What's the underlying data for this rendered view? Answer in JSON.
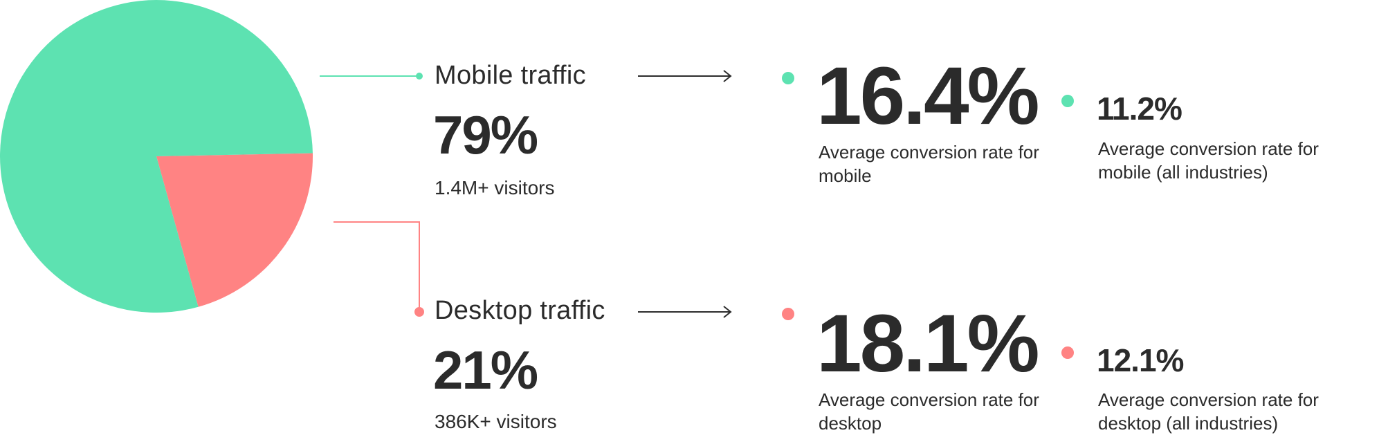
{
  "colors": {
    "mobile": "#5de2b1",
    "desktop": "#ff8383",
    "text": "#2b2b2b"
  },
  "chart_data": {
    "type": "pie",
    "slices": [
      {
        "name": "Mobile traffic",
        "value": 79,
        "color": "#5de2b1"
      },
      {
        "name": "Desktop traffic",
        "value": 21,
        "color": "#ff8383"
      }
    ]
  },
  "segments": [
    {
      "key": "mobile",
      "title": "Mobile traffic",
      "share": "79%",
      "visitors": "1.4M+ visitors",
      "rate": "16.4%",
      "rate_desc": "Average conversion rate for mobile",
      "industry_rate": "11.2%",
      "industry_desc": "Average conversion rate for mobile (all industries)"
    },
    {
      "key": "desktop",
      "title": "Desktop traffic",
      "share": "21%",
      "visitors": "386K+ visitors",
      "rate": "18.1%",
      "rate_desc": "Average conversion rate for desktop",
      "industry_rate": "12.1%",
      "industry_desc": "Average conversion rate for desktop (all industries)"
    }
  ]
}
